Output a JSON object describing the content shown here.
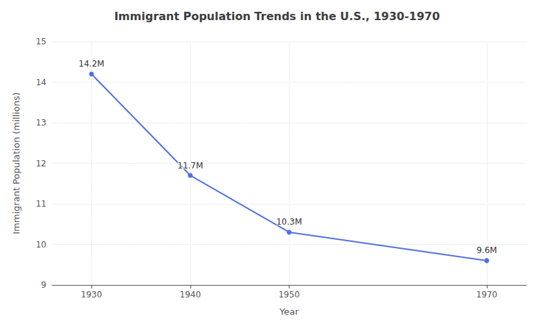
{
  "chart_data": {
    "type": "line",
    "title": "Immigrant Population Trends in the U.S., 1930-1970",
    "xlabel": "Year",
    "ylabel": "Immigrant Population (millions)",
    "x": [
      1930,
      1940,
      1950,
      1970
    ],
    "values": [
      14.2,
      11.7,
      10.3,
      9.6
    ],
    "value_labels": [
      "14.2M",
      "11.7M",
      "10.3M",
      "9.6M"
    ],
    "data_labels": true,
    "marker": "circle",
    "xlim": [
      1926,
      1974
    ],
    "xticks": [
      1930,
      1940,
      1950,
      1970
    ],
    "ylim": [
      9,
      15
    ],
    "yticks": [
      9,
      10,
      11,
      12,
      13,
      14,
      15
    ],
    "grid": true
  }
}
